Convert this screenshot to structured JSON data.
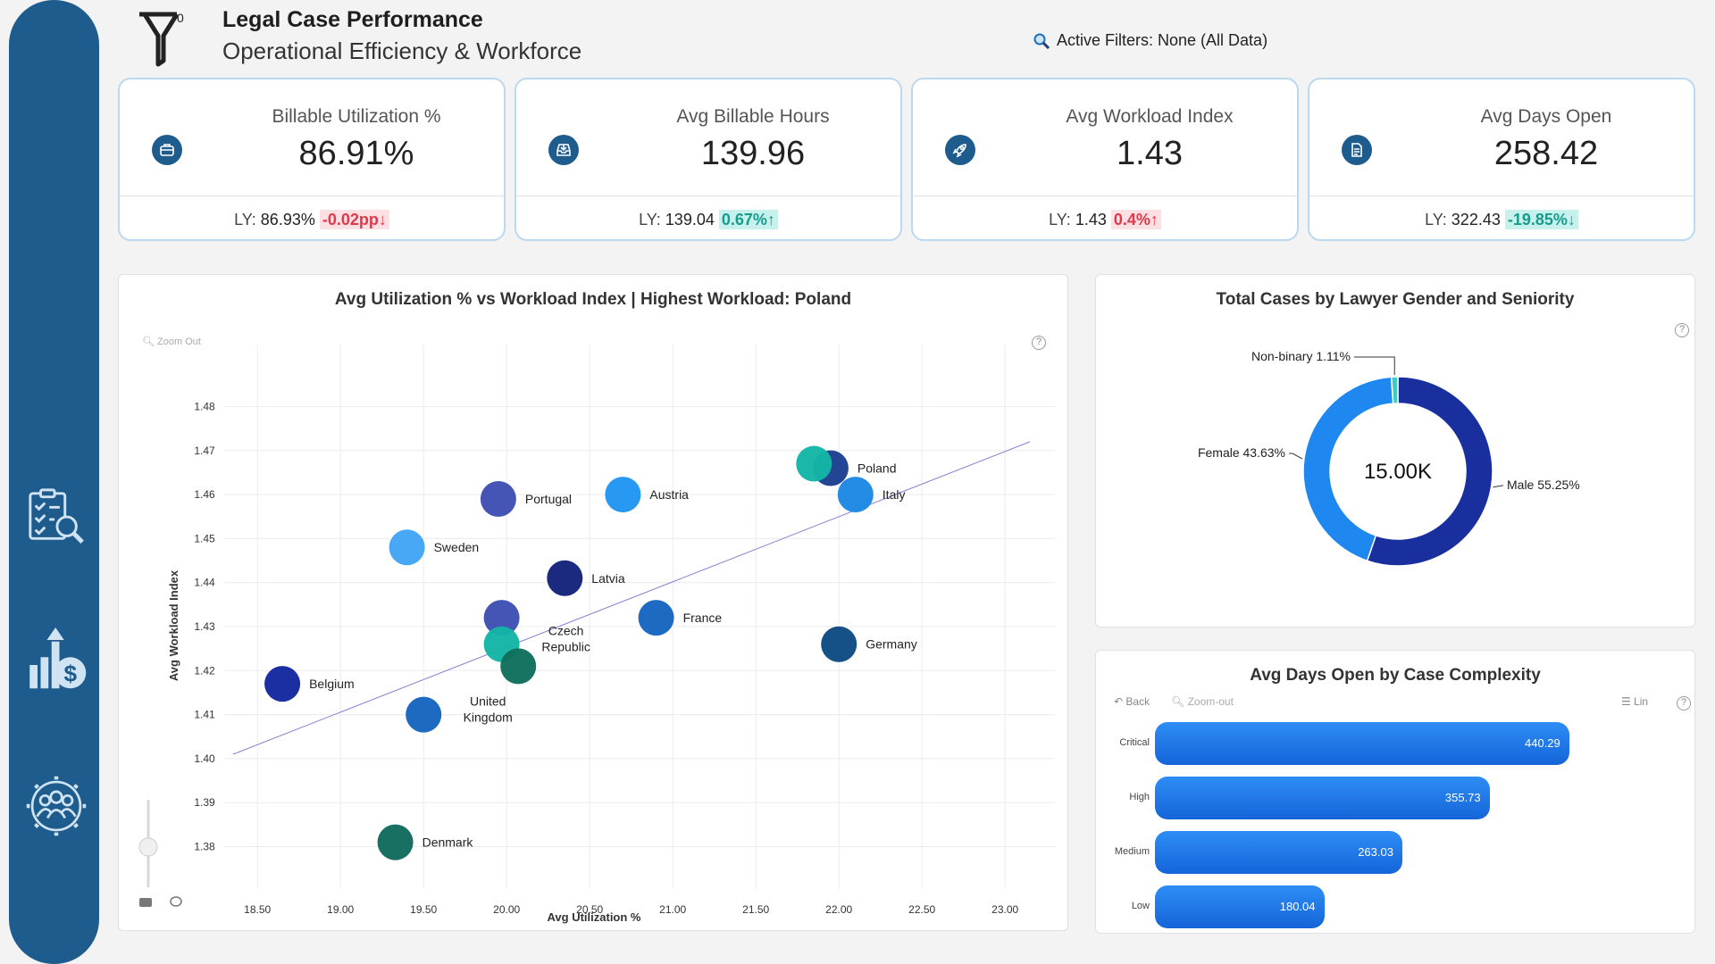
{
  "header": {
    "filter_count": "0",
    "title": "Legal Case Performance",
    "subtitle": "Operational Efficiency & Workforce",
    "active_filters": "Active Filters: None (All Data)"
  },
  "sidebar": {
    "items": [
      {
        "icon": "checklist-search-icon"
      },
      {
        "icon": "growth-dollar-icon"
      },
      {
        "icon": "team-gear-icon"
      }
    ]
  },
  "kpis": [
    {
      "label": "Billable Utilization %",
      "value": "86.91%",
      "ly_label": "LY:",
      "ly_value": "86.93%",
      "delta": "-0.02pp",
      "delta_arrow": "↓",
      "delta_color": "#e0394b",
      "icon": "briefcase-icon"
    },
    {
      "label": "Avg Billable Hours",
      "value": "139.96",
      "ly_label": "LY:",
      "ly_value": "139.04",
      "delta": "0.67%",
      "delta_arrow": "↑",
      "delta_color": "#179c8c",
      "icon": "inbox-icon"
    },
    {
      "label": "Avg Workload Index",
      "value": "1.43",
      "ly_label": "LY:",
      "ly_value": "1.43",
      "delta": "0.4%",
      "delta_arrow": "↑",
      "delta_color": "#e0394b",
      "icon": "rocket-icon"
    },
    {
      "label": "Avg Days Open",
      "value": "258.42",
      "ly_label": "LY:",
      "ly_value": "322.43",
      "delta": "-19.85%",
      "delta_arrow": "↓",
      "delta_color": "#179c8c",
      "icon": "document-icon"
    }
  ],
  "scatter_panel": {
    "zoom_out": "Zoom Out"
  },
  "bar_panel": {
    "back": "Back",
    "zoom_out": "Zoom-out",
    "scale": "Lin"
  },
  "chart_data": [
    {
      "type": "scatter",
      "title": "Avg Utilization % vs Workload Index | Highest Workload: Poland",
      "xlabel": "Avg Utilization %",
      "ylabel": "Avg Workload Index",
      "xlim": [
        18.3,
        23.3
      ],
      "ylim": [
        1.372,
        1.488
      ],
      "x_ticks": [
        "18.50",
        "19.00",
        "19.50",
        "20.00",
        "20.50",
        "21.00",
        "21.50",
        "22.00",
        "22.50",
        "23.00"
      ],
      "y_ticks": [
        "1.38",
        "1.39",
        "1.40",
        "1.41",
        "1.42",
        "1.43",
        "1.44",
        "1.45",
        "1.46",
        "1.47",
        "1.48"
      ],
      "grid": true,
      "trendline": {
        "x": [
          18.3,
          23.3
        ],
        "y": [
          1.401,
          1.472
        ]
      },
      "points": [
        {
          "label": "Poland",
          "x": 21.95,
          "y": 1.466,
          "color": "#1d3f8f"
        },
        {
          "label": "",
          "x": 21.85,
          "y": 1.467,
          "color": "#14b5a5"
        },
        {
          "label": "Italy",
          "x": 22.1,
          "y": 1.46,
          "color": "#1e88e5"
        },
        {
          "label": "Portugal",
          "x": 19.95,
          "y": 1.459,
          "color": "#3f4fb3"
        },
        {
          "label": "Austria",
          "x": 20.7,
          "y": 1.46,
          "color": "#2196f3"
        },
        {
          "label": "Sweden",
          "x": 19.4,
          "y": 1.448,
          "color": "#42a5f5"
        },
        {
          "label": "Latvia",
          "x": 20.35,
          "y": 1.441,
          "color": "#14237a"
        },
        {
          "label": "France",
          "x": 20.9,
          "y": 1.432,
          "color": "#1565c0"
        },
        {
          "label": "Germany",
          "x": 22.0,
          "y": 1.426,
          "color": "#0d4a82"
        },
        {
          "label": "",
          "x": 19.97,
          "y": 1.432,
          "color": "#3f4fb3"
        },
        {
          "label": "Czech\nRepublic",
          "x": 19.97,
          "y": 1.426,
          "color": "#14b5a5"
        },
        {
          "label": "",
          "x": 20.07,
          "y": 1.421,
          "color": "#10705e"
        },
        {
          "label": "Belgium",
          "x": 18.65,
          "y": 1.417,
          "color": "#1428a0"
        },
        {
          "label": "United\nKingdom",
          "x": 19.5,
          "y": 1.41,
          "color": "#1565c0"
        },
        {
          "label": "Denmark",
          "x": 19.33,
          "y": 1.381,
          "color": "#0f6b5c"
        }
      ]
    },
    {
      "type": "pie",
      "title": "Total Cases by Lawyer Gender and Seniority",
      "center_label": "15.00K",
      "slices": [
        {
          "name": "Male",
          "label": "Male 55.25%",
          "value": 55.25,
          "color": "#1a2f9e"
        },
        {
          "name": "Female",
          "label": "Female 43.63%",
          "value": 43.63,
          "color": "#1e88f0"
        },
        {
          "name": "Non-binary",
          "label": "Non-binary 1.11%",
          "value": 1.11,
          "color": "#3ad1c4"
        }
      ]
    },
    {
      "type": "bar",
      "title": "Avg Days Open by Case Complexity",
      "categories": [
        "Critical",
        "High",
        "Medium",
        "Low"
      ],
      "values": [
        440.29,
        355.73,
        263.03,
        180.04
      ],
      "value_labels": [
        "440.29",
        "355.73",
        "263.03",
        "180.04"
      ],
      "xlim": [
        0,
        440.29
      ]
    }
  ]
}
